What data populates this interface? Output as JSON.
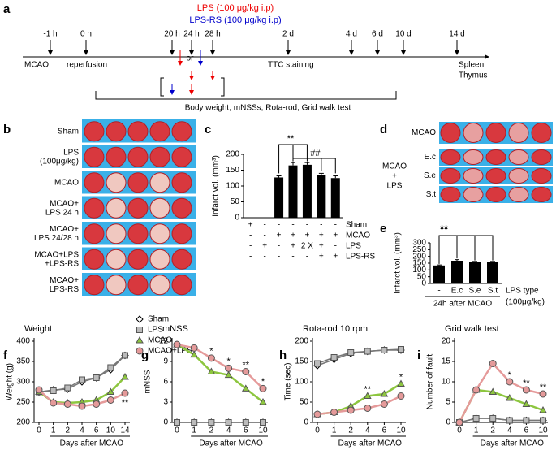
{
  "figure": {
    "panel_labels": [
      "a",
      "b",
      "c",
      "d",
      "e",
      "f",
      "g",
      "h",
      "i"
    ],
    "timeline": {
      "ticks": [
        "-1 h",
        "0 h",
        "20 h",
        "24 h",
        "28 h",
        "2 d",
        "4 d",
        "6 d",
        "10 d",
        "14 d"
      ],
      "lps": "LPS (100 μg/kg i.p)",
      "lps_rs": "LPS-RS (100 μg/kg i.p)",
      "or": "or",
      "events": [
        "MCAO",
        "reperfusion",
        "TTC  staining",
        "Spleen",
        "Thymus"
      ],
      "tests": "Body weight,    mNSSs,    Rota-rod,    Grid walk test"
    },
    "panel_b_rows": [
      [
        "Sham"
      ],
      [
        "LPS",
        "(100μg/kg)"
      ],
      [
        "MCAO"
      ],
      [
        "MCAO+",
        "LPS 24 h"
      ],
      [
        "MCAO+",
        "LPS 24/28 h"
      ],
      [
        "MCAO+LPS",
        "+LPS-RS"
      ],
      [
        "MCAO+",
        "LPS-RS"
      ]
    ],
    "panel_d": {
      "rows": [
        "MCAO",
        "E.c",
        "S.e",
        "S.t"
      ],
      "group": [
        "MCAO",
        "+",
        "LPS"
      ]
    }
  },
  "chart_data": [
    {
      "type": "bar",
      "ylabel": "Infarct vol. (mm³)",
      "values": [
        0,
        0,
        127,
        165,
        167,
        135,
        125
      ],
      "errors": [
        0,
        0,
        5,
        9,
        7,
        5,
        7
      ],
      "color": "#000000",
      "ylim": [
        0,
        200
      ],
      "yticks": [
        0,
        50,
        100,
        150,
        200
      ],
      "table": {
        "rows": [
          "Sham",
          "MCAO",
          "LPS",
          "LPS-RS"
        ],
        "cells": [
          [
            "+",
            "-",
            "-",
            "-",
            "-",
            "-",
            "-"
          ],
          [
            "-",
            "-",
            "+",
            "+",
            "+",
            "+",
            "+"
          ],
          [
            "-",
            "+",
            "-",
            "+",
            "2 X",
            "+",
            "-"
          ],
          [
            "-",
            "-",
            "-",
            "-",
            "-",
            "+",
            "+"
          ]
        ]
      },
      "annotations": [
        "**",
        "##"
      ]
    },
    {
      "type": "bar",
      "ylabel": "Infarct vol. (mm³)",
      "categories": [
        "-",
        "E.c",
        "S.e",
        "S.t"
      ],
      "values": [
        133,
        168,
        160,
        160
      ],
      "errors": [
        4,
        8,
        3,
        3
      ],
      "color": "#000000",
      "ylim": [
        0,
        300
      ],
      "yticks": [
        0,
        50,
        100,
        150,
        200,
        250,
        300
      ],
      "xlabel": "24h after MCAO",
      "extra_label": [
        "LPS type",
        "(100μg/kg)"
      ],
      "annotations": [
        "**"
      ]
    },
    {
      "type": "line",
      "title": "Weight",
      "ylabel": "Weight (g)",
      "xlabel": "Days after MCAO",
      "categories": [
        "0",
        "1",
        "2",
        "4",
        "6",
        "10",
        "14"
      ],
      "ylim": [
        200,
        400
      ],
      "yticks": [
        200,
        250,
        300,
        350,
        400
      ],
      "series": [
        {
          "name": "Sham",
          "color": "#ffffff",
          "marker": "diamond",
          "values": [
            275,
            280,
            282,
            300,
            310,
            330,
            365
          ]
        },
        {
          "name": "LPS",
          "color": "#bbbbbb",
          "marker": "square",
          "values": [
            275,
            278,
            285,
            305,
            310,
            335,
            365
          ]
        },
        {
          "name": "MCAO",
          "color": "#8dc63f",
          "marker": "triangle",
          "values": [
            275,
            250,
            248,
            250,
            255,
            275,
            312
          ]
        },
        {
          "name": "MCAO+LPS",
          "color": "#e59a9a",
          "marker": "circle",
          "values": [
            280,
            248,
            245,
            240,
            245,
            255,
            272
          ]
        }
      ],
      "annotations": [
        "**"
      ]
    },
    {
      "type": "line",
      "title": "mNSS",
      "ylabel": "mNSS",
      "xlabel": "Days after MCAO",
      "categories": [
        "0",
        "1",
        "2",
        "4",
        "6",
        "10"
      ],
      "ylim": [
        0,
        12
      ],
      "yticks": [
        0,
        3,
        6,
        9,
        12
      ],
      "series": [
        {
          "color": "#ffffff",
          "marker": "diamond",
          "values": [
            0,
            0,
            0,
            0,
            0,
            0
          ]
        },
        {
          "color": "#bbbbbb",
          "marker": "square",
          "values": [
            0,
            0,
            0,
            0,
            0,
            0
          ]
        },
        {
          "color": "#8dc63f",
          "marker": "triangle",
          "values": [
            11.5,
            10,
            7.5,
            7,
            5,
            3
          ]
        },
        {
          "color": "#e59a9a",
          "marker": "circle",
          "values": [
            11.5,
            11,
            9.5,
            8,
            7.5,
            5
          ]
        }
      ],
      "annotations": [
        "*",
        "*",
        "**",
        "*"
      ]
    },
    {
      "type": "line",
      "title": "Rota-rod  10 rpm",
      "ylabel": "Time (sec)",
      "xlabel": "Days after MCAO",
      "categories": [
        "0",
        "1",
        "2",
        "4",
        "6",
        "10"
      ],
      "ylim": [
        0,
        200
      ],
      "yticks": [
        0,
        50,
        100,
        150,
        200
      ],
      "series": [
        {
          "color": "#ffffff",
          "marker": "diamond",
          "values": [
            140,
            155,
            170,
            175,
            178,
            178
          ]
        },
        {
          "color": "#bbbbbb",
          "marker": "square",
          "values": [
            145,
            160,
            172,
            175,
            178,
            180
          ]
        },
        {
          "color": "#8dc63f",
          "marker": "triangle",
          "values": [
            20,
            25,
            40,
            65,
            70,
            95
          ]
        },
        {
          "color": "#e59a9a",
          "marker": "circle",
          "values": [
            20,
            25,
            30,
            35,
            45,
            65
          ]
        }
      ],
      "annotations": [
        "**",
        "*"
      ]
    },
    {
      "type": "line",
      "title": "Grid walk test",
      "ylabel": "Number of fault",
      "xlabel": "Days after MCAO",
      "categories": [
        "0",
        "1",
        "2",
        "4",
        "6",
        "10"
      ],
      "ylim": [
        0,
        20
      ],
      "yticks": [
        0,
        5,
        10,
        15,
        20
      ],
      "series": [
        {
          "color": "#ffffff",
          "marker": "diamond",
          "values": [
            0,
            1,
            1,
            0.5,
            0.5,
            0.5
          ]
        },
        {
          "color": "#bbbbbb",
          "marker": "square",
          "values": [
            0,
            1,
            1,
            0.5,
            0.5,
            0.5
          ]
        },
        {
          "color": "#8dc63f",
          "marker": "triangle",
          "values": [
            0,
            8,
            7.5,
            6,
            4.5,
            3
          ]
        },
        {
          "color": "#e59a9a",
          "marker": "circle",
          "values": [
            0,
            8,
            14.5,
            10,
            8,
            7
          ]
        }
      ],
      "annotations": [
        "*",
        "**",
        "**"
      ]
    }
  ]
}
